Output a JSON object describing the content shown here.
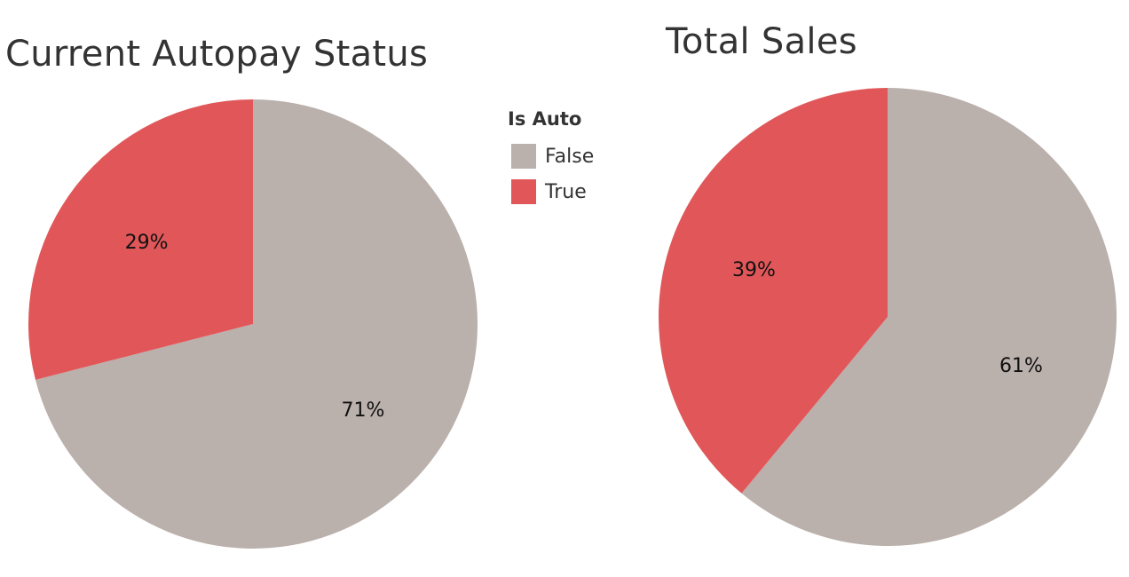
{
  "colors": {
    "False": "#bab0ac",
    "True": "#e15759"
  },
  "legend": {
    "title": "Is Auto",
    "items": [
      {
        "label": "False",
        "color": "#bab0ac"
      },
      {
        "label": "True",
        "color": "#e15759"
      }
    ]
  },
  "chart_data": [
    {
      "type": "pie",
      "title": "Current Autopay Status",
      "slices": [
        {
          "category": "False",
          "value": 71,
          "label": "71%"
        },
        {
          "category": "True",
          "value": 29,
          "label": "29%"
        }
      ]
    },
    {
      "type": "pie",
      "title": "Total Sales",
      "slices": [
        {
          "category": "False",
          "value": 61,
          "label": "61%"
        },
        {
          "category": "True",
          "value": 39,
          "label": "39%"
        }
      ]
    }
  ]
}
